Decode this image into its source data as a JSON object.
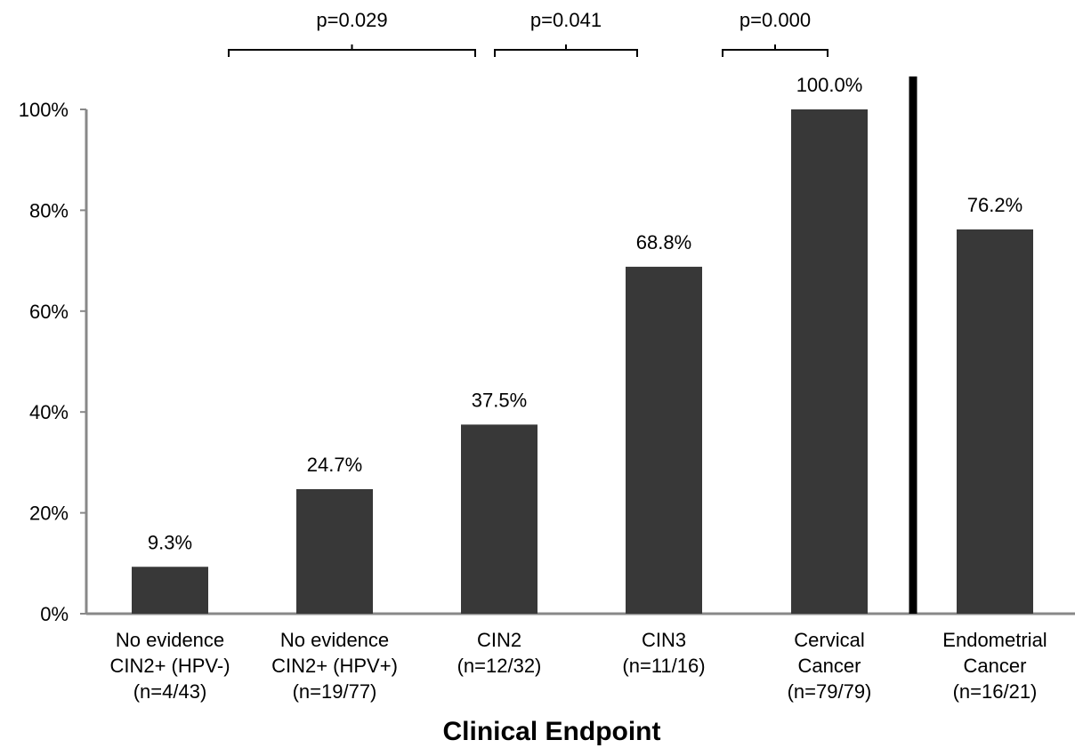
{
  "chart_data": {
    "type": "bar",
    "xlabel": "Clinical Endpoint",
    "ylabel": "",
    "ylim": [
      0,
      100
    ],
    "y_ticks": [
      "0%",
      "20%",
      "40%",
      "60%",
      "80%",
      "100%"
    ],
    "y_tick_values": [
      0,
      20,
      40,
      60,
      80,
      100
    ],
    "categories": [
      [
        "No evidence",
        "CIN2+ (HPV-)",
        "(n=4/43)"
      ],
      [
        "No evidence",
        "CIN2+ (HPV+)",
        "(n=19/77)"
      ],
      [
        "CIN2",
        "(n=12/32)"
      ],
      [
        "CIN3",
        "(n=11/16)"
      ],
      [
        "Cervical",
        "Cancer",
        "(n=79/79)"
      ],
      [
        "Endometrial",
        "Cancer",
        "(n=16/21)"
      ]
    ],
    "values": [
      9.3,
      24.7,
      37.5,
      68.8,
      100.0,
      76.2
    ],
    "data_labels": [
      "9.3%",
      "24.7%",
      "37.5%",
      "68.8%",
      "100.0%",
      "76.2%"
    ],
    "bar_color": "#383838",
    "divider_after_category": 4,
    "comparisons": [
      {
        "from": 0,
        "to": 1,
        "label": "p=0.029"
      },
      {
        "from": 2,
        "to": 2,
        "label": "p=0.041"
      },
      {
        "from": 3,
        "to": 4,
        "label": "p=0.000"
      }
    ],
    "grid": false,
    "legend": "none"
  }
}
